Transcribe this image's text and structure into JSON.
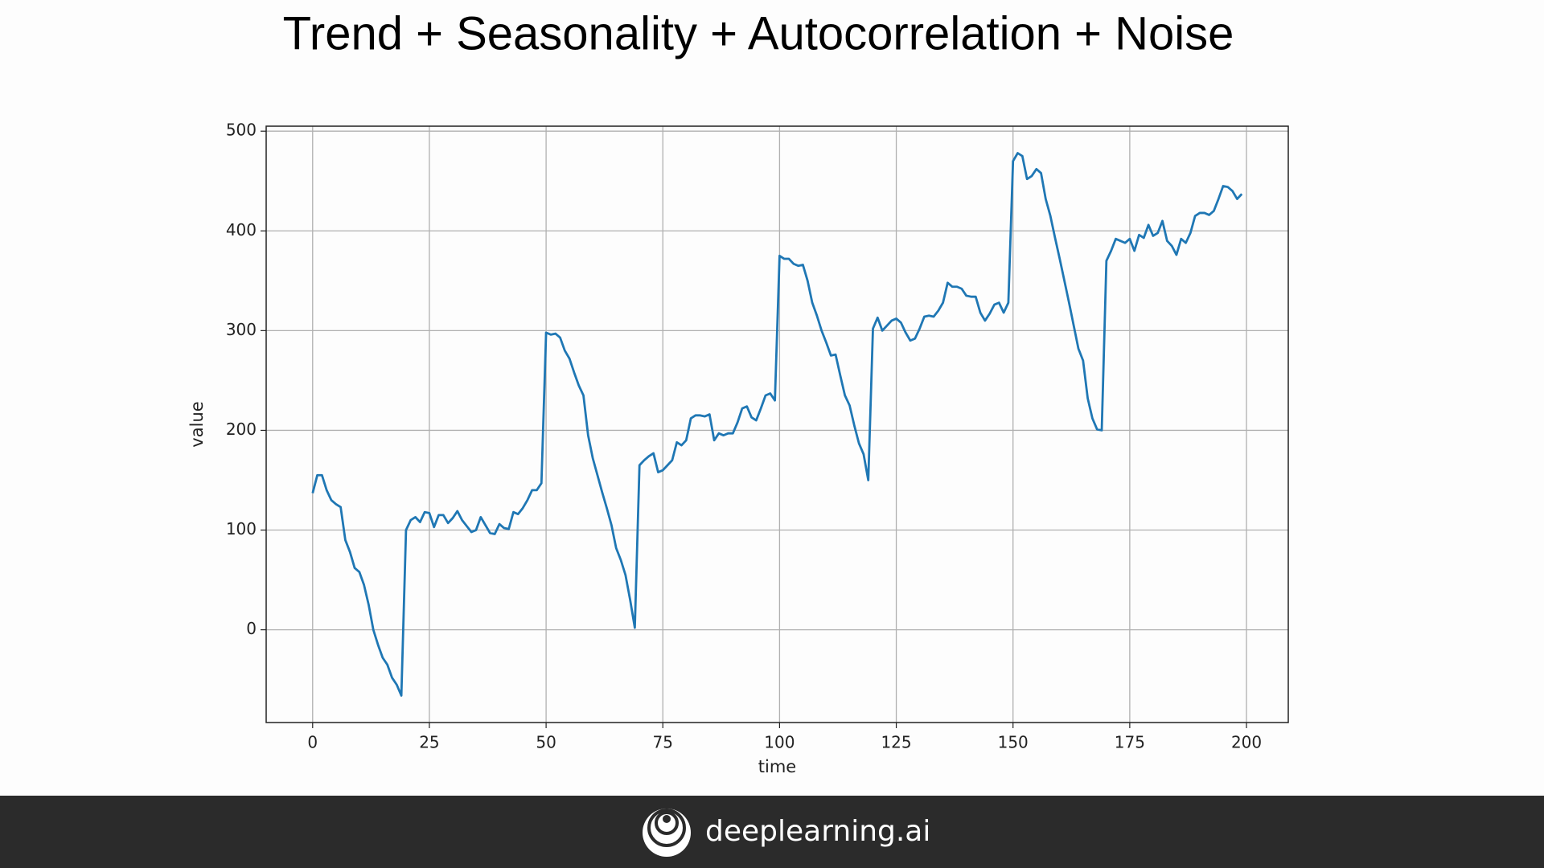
{
  "chart_data": {
    "type": "line",
    "title": "Trend + Seasonality + Autocorrelation + Noise",
    "xlabel": "time",
    "ylabel": "value",
    "color": "#1f77b4",
    "grid": true,
    "xlim": [
      -9.95,
      208.95
    ],
    "ylim": [
      -93,
      505
    ],
    "xticks": [
      0,
      25,
      50,
      75,
      100,
      125,
      150,
      175,
      200
    ],
    "yticks": [
      0,
      100,
      200,
      300,
      400,
      500
    ],
    "x": [
      0,
      1,
      2,
      3,
      4,
      5,
      6,
      7,
      8,
      9,
      10,
      11,
      12,
      13,
      14,
      15,
      16,
      17,
      18,
      19,
      20,
      21,
      22,
      23,
      24,
      25,
      26,
      27,
      28,
      29,
      30,
      31,
      32,
      33,
      34,
      35,
      36,
      37,
      38,
      39,
      40,
      41,
      42,
      43,
      44,
      45,
      46,
      47,
      48,
      49,
      50,
      51,
      52,
      53,
      54,
      55,
      56,
      57,
      58,
      59,
      60,
      61,
      62,
      63,
      64,
      65,
      66,
      67,
      68,
      69,
      70,
      71,
      72,
      73,
      74,
      75,
      76,
      77,
      78,
      79,
      80,
      81,
      82,
      83,
      84,
      85,
      86,
      87,
      88,
      89,
      90,
      91,
      92,
      93,
      94,
      95,
      96,
      97,
      98,
      99,
      100,
      101,
      102,
      103,
      104,
      105,
      106,
      107,
      108,
      109,
      110,
      111,
      112,
      113,
      114,
      115,
      116,
      117,
      118,
      119,
      120,
      121,
      122,
      123,
      124,
      125,
      126,
      127,
      128,
      129,
      130,
      131,
      132,
      133,
      134,
      135,
      136,
      137,
      138,
      139,
      140,
      141,
      142,
      143,
      144,
      145,
      146,
      147,
      148,
      149,
      150,
      151,
      152,
      153,
      154,
      155,
      156,
      157,
      158,
      159,
      160,
      161,
      162,
      163,
      164,
      165,
      166,
      167,
      168,
      169,
      170,
      171,
      172,
      173,
      174,
      175,
      176,
      177,
      178,
      179,
      180,
      181,
      182,
      183,
      184,
      185,
      186,
      187,
      188,
      189,
      190,
      191,
      192,
      193,
      194,
      195,
      196,
      197,
      198,
      199
    ],
    "values": [
      137,
      155,
      155,
      140,
      130,
      126,
      123,
      90,
      78,
      62,
      58,
      45,
      25,
      0,
      -15,
      -28,
      -35,
      -48,
      -55,
      -66,
      100,
      110,
      113,
      108,
      118,
      117,
      103,
      115,
      115,
      107,
      112,
      119,
      110,
      104,
      98,
      100,
      113,
      105,
      97,
      96,
      106,
      102,
      101,
      118,
      116,
      122,
      130,
      140,
      140,
      147,
      298,
      296,
      297,
      293,
      280,
      272,
      258,
      245,
      235,
      195,
      172,
      155,
      138,
      122,
      105,
      82,
      70,
      55,
      30,
      2,
      165,
      170,
      174,
      177,
      158,
      160,
      165,
      170,
      188,
      185,
      190,
      212,
      215,
      215,
      214,
      216,
      190,
      197,
      195,
      197,
      197,
      208,
      222,
      224,
      213,
      210,
      222,
      235,
      237,
      230,
      375,
      372,
      372,
      367,
      365,
      366,
      350,
      328,
      315,
      300,
      288,
      275,
      276,
      255,
      235,
      225,
      205,
      187,
      176,
      150,
      302,
      313,
      300,
      305,
      310,
      312,
      308,
      298,
      290,
      292,
      302,
      314,
      315,
      314,
      320,
      328,
      348,
      344,
      344,
      342,
      335,
      334,
      334,
      318,
      310,
      317,
      326,
      328,
      318,
      328,
      470,
      478,
      475,
      452,
      455,
      462,
      458,
      432,
      415,
      393,
      372,
      350,
      328,
      305,
      282,
      270,
      232,
      212,
      201,
      200,
      370,
      380,
      392,
      390,
      388,
      392,
      380,
      396,
      393,
      406,
      395,
      398,
      410,
      390,
      385,
      376,
      392,
      388,
      398,
      415,
      418,
      418,
      416,
      420,
      432,
      445,
      444,
      440,
      432,
      437
    ]
  },
  "footer": {
    "brand": "deeplearning.ai"
  }
}
